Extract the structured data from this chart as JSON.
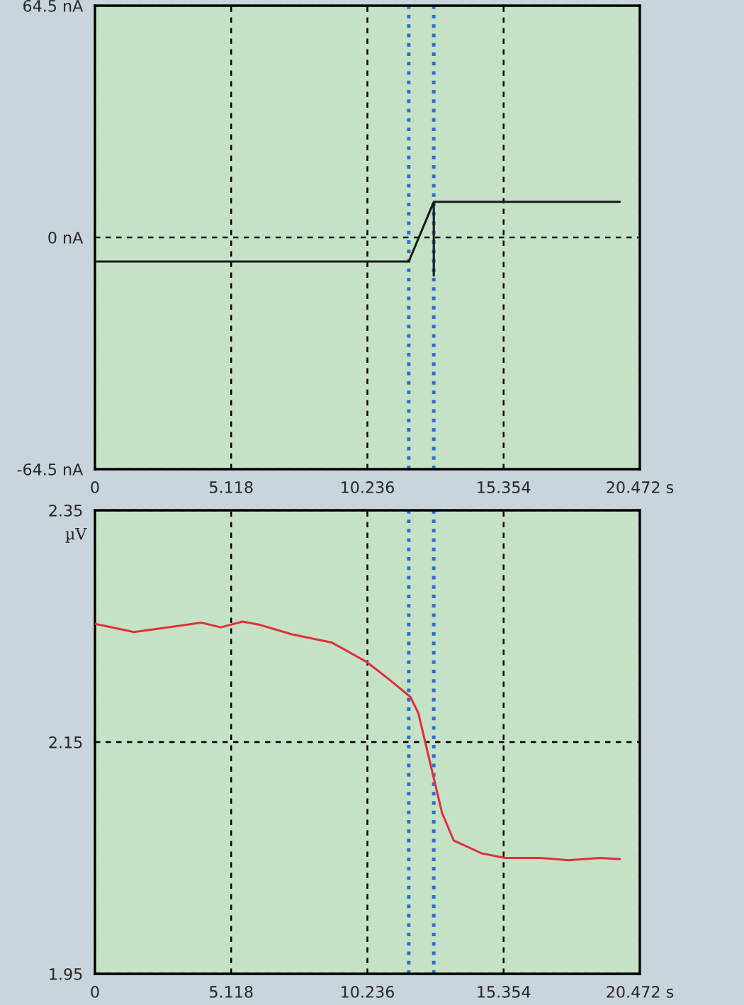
{
  "chart_data": [
    {
      "type": "line",
      "xlim": [
        0,
        20.472
      ],
      "ylim": [
        -64.5,
        64.5
      ],
      "xticks": [
        0,
        5.118,
        10.236,
        15.354,
        {
          "value": 20.472,
          "label": "20.472 s"
        }
      ],
      "yticks": [
        {
          "value": -64.5,
          "label": "-64.5 nA"
        },
        {
          "value": 0,
          "label": "0 nA"
        },
        {
          "value": 64.5,
          "label": "64.5 nA"
        }
      ],
      "grid": true,
      "marker": "none",
      "line_style": "solid",
      "series": [
        {
          "color": "#1a1a1a",
          "x": [
            0,
            11.79,
            12.73,
            12.73,
            12.73,
            19.72
          ],
          "values": [
            -6.7,
            -6.7,
            9.9,
            -10.6,
            9.9,
            9.9
          ]
        }
      ],
      "ref_lines": [
        {
          "axis": "x",
          "value": 11.79,
          "color": "#2a6fd6",
          "line_style": "dotted"
        },
        {
          "axis": "x",
          "value": 12.73,
          "color": "#2a6fd6",
          "line_style": "dotted"
        }
      ]
    },
    {
      "type": "line",
      "ylabel": "µV",
      "xlim": [
        0,
        20.472
      ],
      "ylim": [
        1.95,
        2.35
      ],
      "xticks": [
        0,
        5.118,
        10.236,
        15.354,
        {
          "value": 20.472,
          "label": "20.472 s"
        }
      ],
      "yticks": [
        {
          "value": 1.95,
          "label": "1.95"
        },
        {
          "value": 2.15,
          "label": "2.15"
        },
        {
          "value": 2.35,
          "label": "2.35"
        }
      ],
      "grid": true,
      "marker": "none",
      "line_style": "solid",
      "series": [
        {
          "color": "#e0303a",
          "x": [
            0,
            1.47,
            3.99,
            4.73,
            5.55,
            6.22,
            7.4,
            8.89,
            10.22,
            11.11,
            11.85,
            12.15,
            12.45,
            12.74,
            13.04,
            13.48,
            14.52,
            15.41,
            16.75,
            17.79,
            18.97,
            19.72
          ],
          "values": [
            2.252,
            2.245,
            2.253,
            2.249,
            2.254,
            2.251,
            2.243,
            2.236,
            2.219,
            2.203,
            2.189,
            2.175,
            2.146,
            2.118,
            2.089,
            2.065,
            2.054,
            2.05,
            2.05,
            2.048,
            2.05,
            2.049
          ]
        }
      ],
      "ref_lines": [
        {
          "axis": "x",
          "value": 11.79,
          "color": "#2a6fd6",
          "line_style": "dotted"
        },
        {
          "axis": "x",
          "value": 12.73,
          "color": "#2a6fd6",
          "line_style": "dotted"
        }
      ]
    }
  ]
}
